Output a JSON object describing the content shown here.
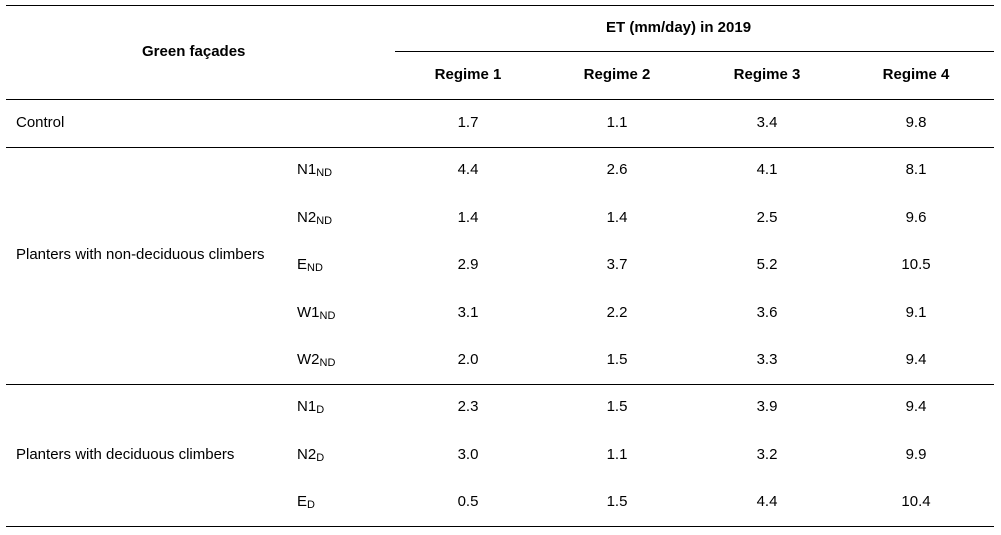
{
  "header": {
    "row_label": "Green façades",
    "group_label": "ET (mm/day) in 2019",
    "columns": [
      "Regime 1",
      "Regime 2",
      "Regime 3",
      "Regime 4"
    ]
  },
  "control": {
    "label": "Control",
    "values": [
      "1.7",
      "1.1",
      "3.4",
      "9.8"
    ]
  },
  "non_deciduous": {
    "label": "Planters with non-deciduous climbers",
    "rows": [
      {
        "code": "N1",
        "sub": "ND",
        "values": [
          "4.4",
          "2.6",
          "4.1",
          "8.1"
        ]
      },
      {
        "code": "N2",
        "sub": "ND",
        "values": [
          "1.4",
          "1.4",
          "2.5",
          "9.6"
        ]
      },
      {
        "code": "E",
        "sub": "ND",
        "values": [
          "2.9",
          "3.7",
          "5.2",
          "10.5"
        ]
      },
      {
        "code": "W1",
        "sub": "ND",
        "values": [
          "3.1",
          "2.2",
          "3.6",
          "9.1"
        ]
      },
      {
        "code": "W2",
        "sub": "ND",
        "values": [
          "2.0",
          "1.5",
          "3.3",
          "9.4"
        ]
      }
    ]
  },
  "deciduous": {
    "label": "Planters with deciduous climbers",
    "rows": [
      {
        "code": "N1",
        "sub": "D",
        "values": [
          "2.3",
          "1.5",
          "3.9",
          "9.4"
        ]
      },
      {
        "code": "N2",
        "sub": "D",
        "values": [
          "3.0",
          "1.1",
          "3.2",
          "9.9"
        ]
      },
      {
        "code": "E",
        "sub": "D",
        "values": [
          "0.5",
          "1.5",
          "4.4",
          "10.4"
        ]
      }
    ]
  }
}
